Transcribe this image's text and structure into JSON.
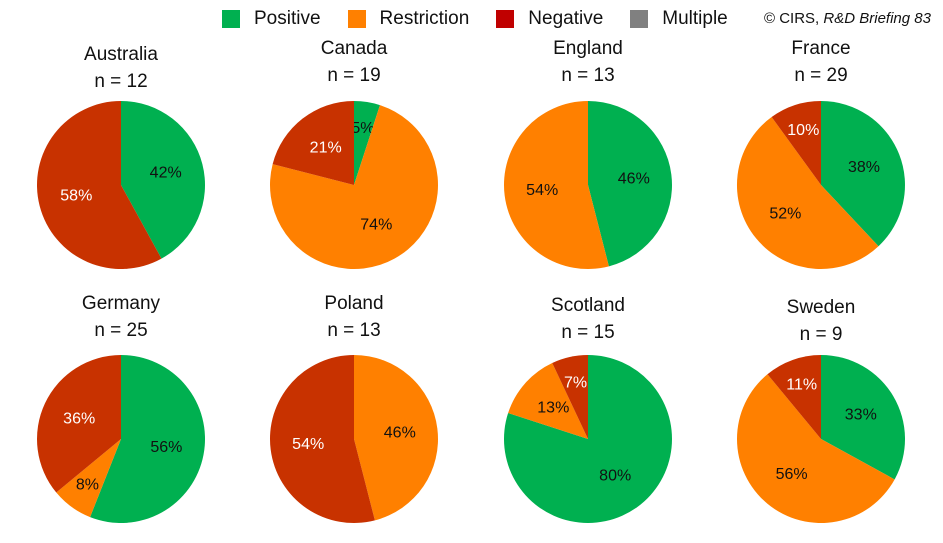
{
  "legend": [
    {
      "label": "Positive",
      "color": "#00b050"
    },
    {
      "label": "Restriction",
      "color": "#ff8000"
    },
    {
      "label": "Negative",
      "color": "#c00000"
    },
    {
      "label": "Multiple",
      "color": "#808080"
    }
  ],
  "copyright": {
    "prefix": "© CIRS, ",
    "italic": "R&D Briefing 83"
  },
  "colors": {
    "Positive": "#00b050",
    "Restriction": "#ff8000",
    "Negative": "#c00000",
    "Multiple": "#808080",
    "NegativeSlice": "#c83200"
  },
  "chart_data": [
    {
      "type": "pie",
      "title": "Australia",
      "subtitle": "n = 12",
      "slices": [
        {
          "category": "Positive",
          "value": 42,
          "label": "42%"
        },
        {
          "category": "Negative",
          "value": 58,
          "label": "58%"
        }
      ]
    },
    {
      "type": "pie",
      "title": "Canada",
      "subtitle": "n = 19",
      "slices": [
        {
          "category": "Positive",
          "value": 5,
          "label": "5%"
        },
        {
          "category": "Restriction",
          "value": 74,
          "label": "74%"
        },
        {
          "category": "Negative",
          "value": 21,
          "label": "21%"
        }
      ]
    },
    {
      "type": "pie",
      "title": "England",
      "subtitle": "n = 13",
      "slices": [
        {
          "category": "Positive",
          "value": 46,
          "label": "46%"
        },
        {
          "category": "Restriction",
          "value": 54,
          "label": "54%"
        }
      ]
    },
    {
      "type": "pie",
      "title": "France",
      "subtitle": "n = 29",
      "slices": [
        {
          "category": "Positive",
          "value": 38,
          "label": "38%"
        },
        {
          "category": "Restriction",
          "value": 52,
          "label": "52%"
        },
        {
          "category": "Negative",
          "value": 10,
          "label": "10%"
        }
      ]
    },
    {
      "type": "pie",
      "title": "Germany",
      "subtitle": "n = 25",
      "slices": [
        {
          "category": "Positive",
          "value": 56,
          "label": "56%"
        },
        {
          "category": "Restriction",
          "value": 8,
          "label": "8%"
        },
        {
          "category": "Negative",
          "value": 36,
          "label": "36%"
        }
      ]
    },
    {
      "type": "pie",
      "title": "Poland",
      "subtitle": "n = 13",
      "slices": [
        {
          "category": "Restriction",
          "value": 46,
          "label": "46%"
        },
        {
          "category": "Negative",
          "value": 54,
          "label": "54%"
        }
      ]
    },
    {
      "type": "pie",
      "title": "Scotland",
      "subtitle": "n = 15",
      "slices": [
        {
          "category": "Positive",
          "value": 80,
          "label": "80%"
        },
        {
          "category": "Restriction",
          "value": 13,
          "label": "13%"
        },
        {
          "category": "Negative",
          "value": 7,
          "label": "7%"
        }
      ]
    },
    {
      "type": "pie",
      "title": "Sweden",
      "subtitle": "n = 9",
      "slices": [
        {
          "category": "Positive",
          "value": 33,
          "label": "33%"
        },
        {
          "category": "Restriction",
          "value": 56,
          "label": "56%"
        },
        {
          "category": "Negative",
          "value": 11,
          "label": "11%"
        }
      ]
    }
  ]
}
